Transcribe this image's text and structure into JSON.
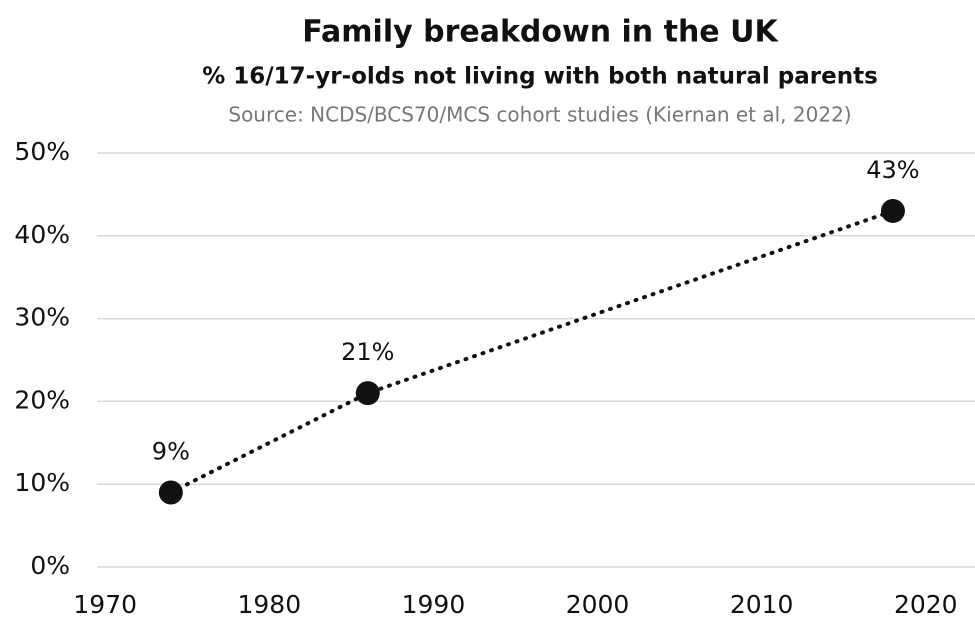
{
  "chart_data": {
    "type": "line",
    "title": "Family breakdown in the UK",
    "subtitle": "% 16/17-yr-olds not living with both natural parents",
    "source": "Source: NCDS/BCS70/MCS cohort studies (Kiernan et al, 2022)",
    "x": [
      1974,
      1986,
      2018
    ],
    "series": [
      {
        "name": "Not living with both natural parents",
        "color": "#111111",
        "values": [
          9,
          21,
          43
        ],
        "value_labels": [
          "9%",
          "21%",
          "43%"
        ]
      }
    ],
    "xlim": [
      1969.5,
      2023
    ],
    "xticks": [
      1970,
      1980,
      1990,
      2000,
      2010,
      2020
    ],
    "ylim": [
      0,
      50
    ],
    "yticks": [
      {
        "value": 0,
        "label": "0%"
      },
      {
        "value": 10,
        "label": "10%"
      },
      {
        "value": 20,
        "label": "20%"
      },
      {
        "value": 30,
        "label": "30%"
      },
      {
        "value": 40,
        "label": "40%"
      },
      {
        "value": 50,
        "label": "50%"
      }
    ],
    "grid": true,
    "line_style": "dotted"
  }
}
